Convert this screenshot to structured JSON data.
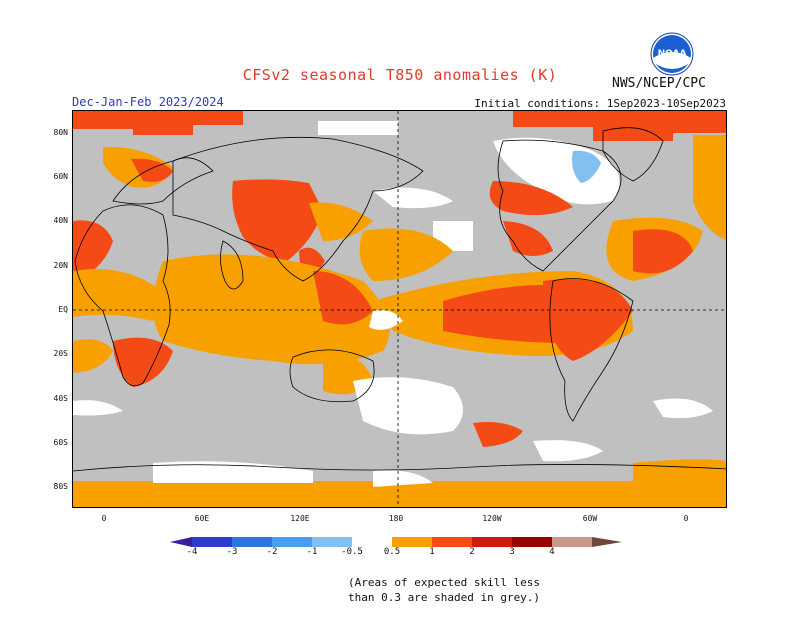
{
  "header": {
    "title": "CFSv2 seasonal T850 anomalies (K)",
    "agency": "NWS/NCEP/CPC",
    "logo_text": "NOAA",
    "season": "Dec-Jan-Feb 2023/2024",
    "initial_conditions": "Initial conditions: 1Sep2023-10Sep2023"
  },
  "map": {
    "lat_labels": [
      "80N",
      "60N",
      "40N",
      "20N",
      "EQ",
      "20S",
      "40S",
      "60S",
      "80S"
    ],
    "lon_labels": [
      "0",
      "60E",
      "120E",
      "180",
      "120W",
      "60W",
      "0"
    ]
  },
  "legend": {
    "tick_labels": [
      "-4",
      "-3",
      "-2",
      "-1",
      "-0.5",
      "0.5",
      "1",
      "2",
      "3",
      "4"
    ],
    "colors": [
      "#3a1f9a",
      "#2f3bd0",
      "#2f73e6",
      "#4c9cee",
      "#84bff2",
      "#ffffff",
      "#f7a000",
      "#f44a16",
      "#cc1a10",
      "#9a0000",
      "#c89888",
      "#6e463c"
    ],
    "skill_mask_color": "#c0c0c0"
  },
  "note": {
    "line1": "(Areas of expected skill less",
    "line2": "than 0.3 are shaded in grey.)"
  }
}
